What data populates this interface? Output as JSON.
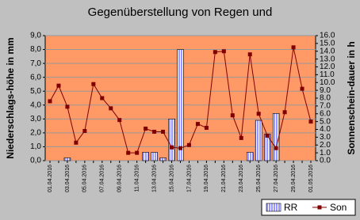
{
  "chart_data": {
    "type": "bar",
    "title": "Gegenüberstellung von Regen und",
    "y_label": "Niederschlags-höhe in mm",
    "y2_label": "Sonnenschein-dauer in h",
    "categories": [
      "01.04.2016",
      null,
      "03.04.2016",
      null,
      "05.04.2016",
      null,
      "07.04.2016",
      null,
      "09.04.2016",
      null,
      "11.04.2016",
      null,
      "13.04.2016",
      null,
      "15.04.2016",
      null,
      "17.04.2016",
      null,
      "19.04.2016",
      null,
      "21.04.2016",
      null,
      "23.04.2016",
      null,
      "25.04.2016",
      null,
      "27.04.2016",
      null,
      "29.04.2016",
      null,
      "01.05.2016"
    ],
    "series": [
      {
        "name": "RR",
        "color": "#9999ff",
        "values": [
          0,
          0,
          0.2,
          0,
          0,
          0,
          0,
          0,
          0,
          0,
          0,
          0.6,
          0.6,
          0.2,
          3.0,
          8.0,
          0,
          0,
          0,
          0,
          0,
          0,
          0,
          0.6,
          2.9,
          1.9,
          3.4,
          0,
          0,
          0,
          0
        ]
      },
      {
        "name": "Son",
        "color": "#800000",
        "axis": "y2",
        "type": "line",
        "values": [
          7.6,
          9.6,
          6.9,
          2.3,
          3.8,
          9.8,
          8.0,
          6.7,
          5.2,
          1.0,
          1.0,
          4.1,
          3.7,
          3.7,
          1.7,
          1.6,
          2.0,
          4.7,
          4.2,
          13.9,
          14.0,
          5.8,
          2.9,
          13.6,
          6.0,
          3.2,
          1.6,
          6.2,
          14.5,
          9.2,
          5.0
        ]
      }
    ],
    "ylim": [
      0,
      9
    ],
    "yticks": [
      {
        "value": 0,
        "label": "0,0"
      },
      {
        "value": 1,
        "label": "1,0"
      },
      {
        "value": 2,
        "label": "2,0"
      },
      {
        "value": 3,
        "label": "3,0"
      },
      {
        "value": 4,
        "label": "4,0"
      },
      {
        "value": 5,
        "label": "5,0"
      },
      {
        "value": 6,
        "label": "6,0"
      },
      {
        "value": 7,
        "label": "7,0"
      },
      {
        "value": 8,
        "label": "8,0"
      },
      {
        "value": 9,
        "label": "9,0"
      }
    ],
    "y2lim": [
      0,
      16
    ],
    "y2ticks": [
      {
        "value": 0,
        "label": "0.0"
      },
      {
        "value": 1,
        "label": "1.0"
      },
      {
        "value": 2,
        "label": "2.0"
      },
      {
        "value": 3,
        "label": "3.0"
      },
      {
        "value": 4,
        "label": "4.0"
      },
      {
        "value": 5,
        "label": "5.0"
      },
      {
        "value": 6,
        "label": "6.0"
      },
      {
        "value": 7,
        "label": "7.0"
      },
      {
        "value": 8,
        "label": "8.0"
      },
      {
        "value": 9,
        "label": "9.0"
      },
      {
        "value": 10,
        "label": "10.0"
      },
      {
        "value": 11,
        "label": "11.0"
      },
      {
        "value": 12,
        "label": "12.0"
      },
      {
        "value": 13,
        "label": "13.0"
      },
      {
        "value": 14,
        "label": "14.0"
      },
      {
        "value": 15,
        "label": "15.0"
      },
      {
        "value": 16,
        "label": "16.0"
      }
    ],
    "grid": true,
    "plot_background": "#ff9966",
    "legend_position": "bottom-right"
  }
}
